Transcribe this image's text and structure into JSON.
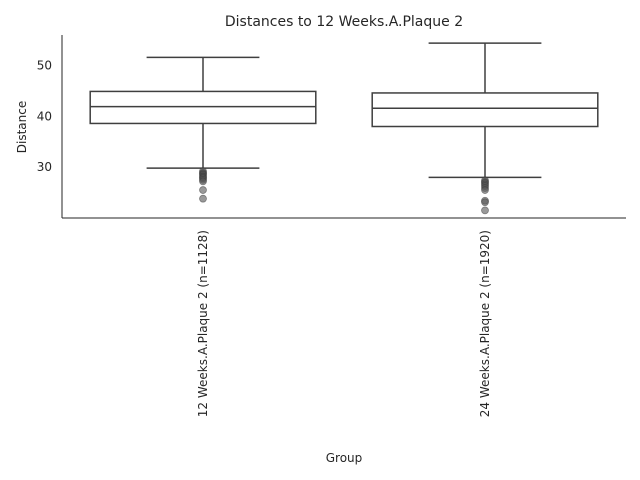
{
  "chart_data": {
    "type": "boxplot",
    "title": "Distances to 12 Weeks.A.Plaque 2",
    "xlabel": "Group",
    "ylabel": "Distance",
    "ylim": [
      20,
      56
    ],
    "yticks": [
      30,
      40,
      50
    ],
    "grid": false,
    "categories": [
      "12 Weeks.A.Plaque 2 (n=1128)",
      "24 Weeks.A.Plaque 2 (n=1920)"
    ],
    "boxes": [
      {
        "category": "12 Weeks.A.Plaque 2 (n=1128)",
        "whisker_low": 29.8,
        "q1": 38.6,
        "median": 41.9,
        "q3": 44.9,
        "whisker_high": 51.6,
        "outliers": [
          29.2,
          28.9,
          28.7,
          28.5,
          28.2,
          28.0,
          27.8,
          27.5,
          27.2,
          25.5,
          23.8
        ]
      },
      {
        "category": "24 Weeks.A.Plaque 2 (n=1920)",
        "whisker_low": 28.0,
        "q1": 38.0,
        "median": 41.6,
        "q3": 44.6,
        "whisker_high": 54.4,
        "outliers": [
          27.4,
          27.1,
          26.9,
          26.6,
          26.3,
          25.9,
          25.5,
          23.4,
          23.1,
          21.5
        ]
      }
    ],
    "colors": {
      "box_edge": "#3f3f3f",
      "outlier_fill": "#555555",
      "axis": "#262626",
      "text": "#262626"
    }
  }
}
